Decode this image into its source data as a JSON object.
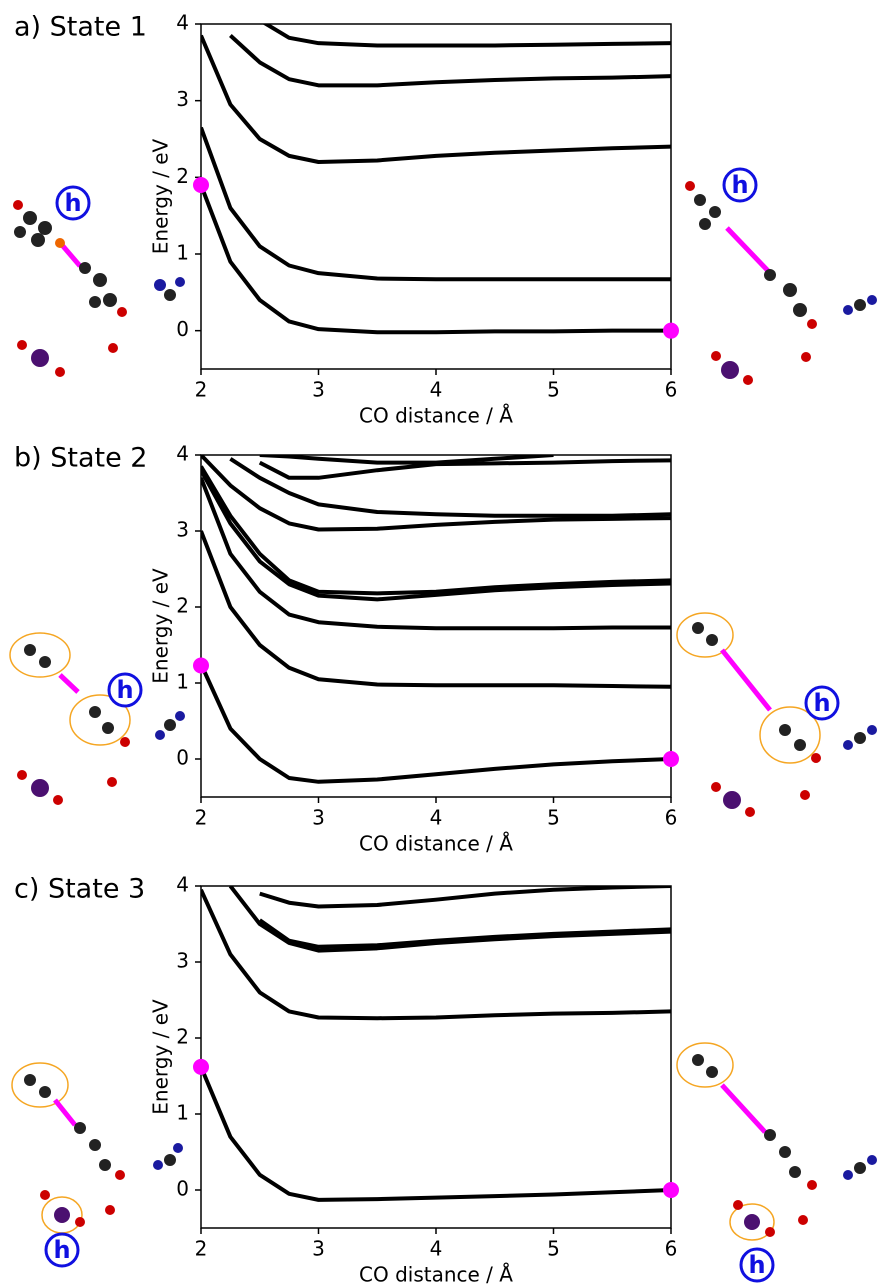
{
  "chart_data": [
    {
      "type": "line",
      "title": "a) State 1",
      "x_label": "CO distance / Å",
      "y_label": "Energy / eV",
      "x": [
        2,
        2.25,
        2.5,
        2.75,
        3,
        3.5,
        4,
        4.5,
        5,
        5.5,
        6
      ],
      "xlim": [
        2,
        6
      ],
      "xticks": [
        2,
        3,
        4,
        5,
        6
      ],
      "ylim": [
        -0.5,
        4
      ],
      "yticks": [
        0,
        1,
        2,
        3,
        4
      ],
      "series": [
        {
          "color": "#000000",
          "values": [
            1.9,
            0.9,
            0.4,
            0.12,
            0.02,
            -0.02,
            -0.02,
            -0.01,
            -0.01,
            0,
            0
          ]
        },
        {
          "color": "#000000",
          "values": [
            2.65,
            1.6,
            1.1,
            0.85,
            0.75,
            0.68,
            0.67,
            0.67,
            0.67,
            0.67,
            0.67
          ]
        },
        {
          "color": "#000000",
          "values": [
            3.85,
            2.95,
            2.5,
            2.28,
            2.2,
            2.22,
            2.28,
            2.32,
            2.35,
            2.38,
            2.4
          ]
        },
        {
          "color": "#000000",
          "values": [
            null,
            3.85,
            3.5,
            3.28,
            3.2,
            3.2,
            3.24,
            3.27,
            3.29,
            3.3,
            3.32
          ]
        },
        {
          "color": "#000000",
          "values": [
            null,
            null,
            4.05,
            3.82,
            3.75,
            3.72,
            3.72,
            3.72,
            3.73,
            3.74,
            3.75
          ]
        }
      ],
      "points": {
        "color": "#ff00ff",
        "x": [
          2,
          6
        ],
        "values": [
          1.9,
          0
        ]
      },
      "annotations": [
        "h",
        "h"
      ]
    },
    {
      "type": "line",
      "title": "b) State 2",
      "x_label": "CO distance / Å",
      "y_label": "Energy / eV",
      "x": [
        2,
        2.25,
        2.5,
        2.75,
        3,
        3.5,
        4,
        4.5,
        5,
        5.5,
        6
      ],
      "xlim": [
        2,
        6
      ],
      "xticks": [
        2,
        3,
        4,
        5,
        6
      ],
      "ylim": [
        -0.5,
        4
      ],
      "yticks": [
        0,
        1,
        2,
        3,
        4
      ],
      "series": [
        {
          "color": "#000000",
          "values": [
            1.25,
            0.4,
            0.0,
            -0.25,
            -0.3,
            -0.27,
            -0.2,
            -0.13,
            -0.07,
            -0.03,
            0
          ]
        },
        {
          "color": "#000000",
          "values": [
            3.0,
            2.0,
            1.5,
            1.2,
            1.05,
            0.98,
            0.97,
            0.97,
            0.97,
            0.96,
            0.95
          ]
        },
        {
          "color": "#000000",
          "values": [
            3.7,
            2.7,
            2.2,
            1.9,
            1.8,
            1.74,
            1.72,
            1.72,
            1.72,
            1.73,
            1.73
          ]
        },
        {
          "color": "#000000",
          "values": [
            3.8,
            3.1,
            2.6,
            2.3,
            2.15,
            2.1,
            2.16,
            2.22,
            2.26,
            2.29,
            2.31
          ]
        },
        {
          "color": "#000000",
          "values": [
            3.85,
            3.2,
            2.7,
            2.35,
            2.2,
            2.18,
            2.2,
            2.26,
            2.3,
            2.33,
            2.35
          ]
        },
        {
          "color": "#000000",
          "values": [
            4.0,
            3.6,
            3.3,
            3.1,
            3.02,
            3.03,
            3.08,
            3.12,
            3.15,
            3.16,
            3.17
          ]
        },
        {
          "color": "#000000",
          "values": [
            null,
            3.95,
            3.7,
            3.5,
            3.35,
            3.25,
            3.22,
            3.2,
            3.2,
            3.2,
            3.22
          ]
        },
        {
          "color": "#000000",
          "values": [
            null,
            null,
            3.9,
            3.7,
            3.7,
            3.8,
            3.88,
            3.89,
            3.9,
            3.92,
            3.93
          ]
        },
        {
          "color": "#000000",
          "values": [
            null,
            null,
            4.0,
            3.98,
            3.95,
            3.9,
            3.9,
            3.95,
            4.0,
            null,
            null
          ]
        }
      ],
      "points": {
        "color": "#ff00ff",
        "x": [
          2,
          6
        ],
        "values": [
          1.23,
          0
        ]
      },
      "annotations": [
        "h",
        "h"
      ]
    },
    {
      "type": "line",
      "title": "c) State 3",
      "x_label": "CO distance / Å",
      "y_label": "Energy / eV",
      "x": [
        2,
        2.25,
        2.5,
        2.75,
        3,
        3.5,
        4,
        4.5,
        5,
        5.5,
        6
      ],
      "xlim": [
        2,
        6
      ],
      "xticks": [
        2,
        3,
        4,
        5,
        6
      ],
      "ylim": [
        -0.5,
        4
      ],
      "yticks": [
        0,
        1,
        2,
        3,
        4
      ],
      "series": [
        {
          "color": "#000000",
          "values": [
            1.62,
            0.7,
            0.2,
            -0.05,
            -0.13,
            -0.12,
            -0.1,
            -0.08,
            -0.06,
            -0.03,
            0
          ]
        },
        {
          "color": "#000000",
          "values": [
            3.95,
            3.1,
            2.6,
            2.35,
            2.27,
            2.26,
            2.27,
            2.3,
            2.32,
            2.33,
            2.35
          ]
        },
        {
          "color": "#000000",
          "values": [
            null,
            4.0,
            3.5,
            3.25,
            3.15,
            3.18,
            3.25,
            3.3,
            3.34,
            3.37,
            3.4
          ]
        },
        {
          "color": "#000000",
          "values": [
            null,
            null,
            3.55,
            3.28,
            3.2,
            3.22,
            3.28,
            3.33,
            3.37,
            3.4,
            3.43
          ]
        },
        {
          "color": "#000000",
          "values": [
            null,
            null,
            3.9,
            3.78,
            3.73,
            3.75,
            3.82,
            3.9,
            3.95,
            3.98,
            4.0
          ]
        }
      ],
      "points": {
        "color": "#ff00ff",
        "x": [
          2,
          6
        ],
        "values": [
          1.62,
          0
        ]
      },
      "annotations": [
        "h",
        "h"
      ]
    }
  ]
}
